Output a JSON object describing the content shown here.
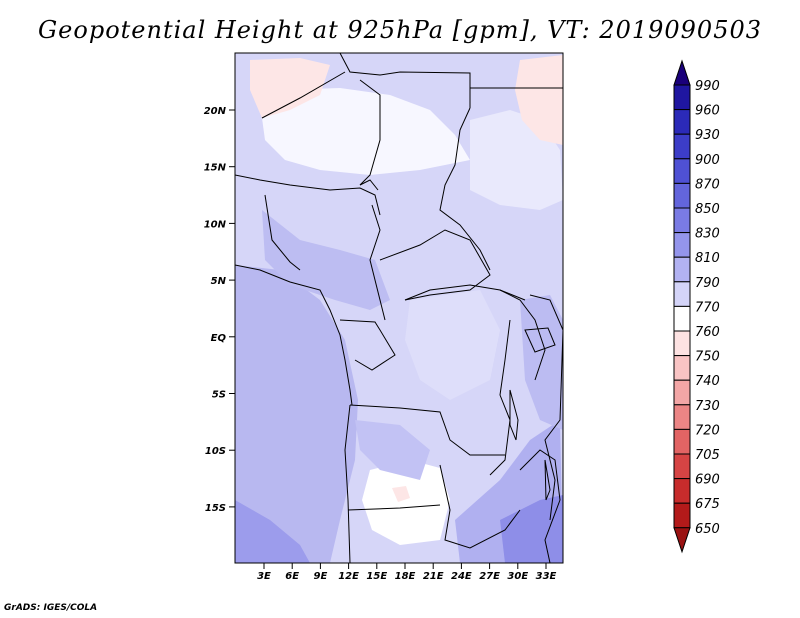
{
  "title": "Geopotential Height at 925hPa [gpm], VT: 2019090503",
  "credit": "GrADS: IGES/COLA",
  "map": {
    "lat_labels": [
      "20N",
      "15N",
      "10N",
      "5N",
      "EQ",
      "5S",
      "10S",
      "15S"
    ],
    "lon_labels": [
      "3E",
      "6E",
      "9E",
      "12E",
      "15E",
      "18E",
      "21E",
      "24E",
      "27E",
      "30E",
      "33E"
    ]
  },
  "colorbar": {
    "levels": [
      "990",
      "960",
      "930",
      "900",
      "870",
      "850",
      "830",
      "810",
      "790",
      "770",
      "760",
      "750",
      "740",
      "730",
      "720",
      "705",
      "690",
      "675",
      "650"
    ],
    "colors": [
      "#1a007a",
      "#1f16a0",
      "#2b2ab8",
      "#3c3dc8",
      "#4f51d4",
      "#6365dc",
      "#7a7be4",
      "#9495ec",
      "#b2b2f2",
      "#d4d4f8",
      "#ffffff",
      "#fde2e2",
      "#f9c4c4",
      "#f3a6a6",
      "#ec8585",
      "#e26464",
      "#d64444",
      "#c72c2c",
      "#b31a1a",
      "#9a1212"
    ]
  }
}
